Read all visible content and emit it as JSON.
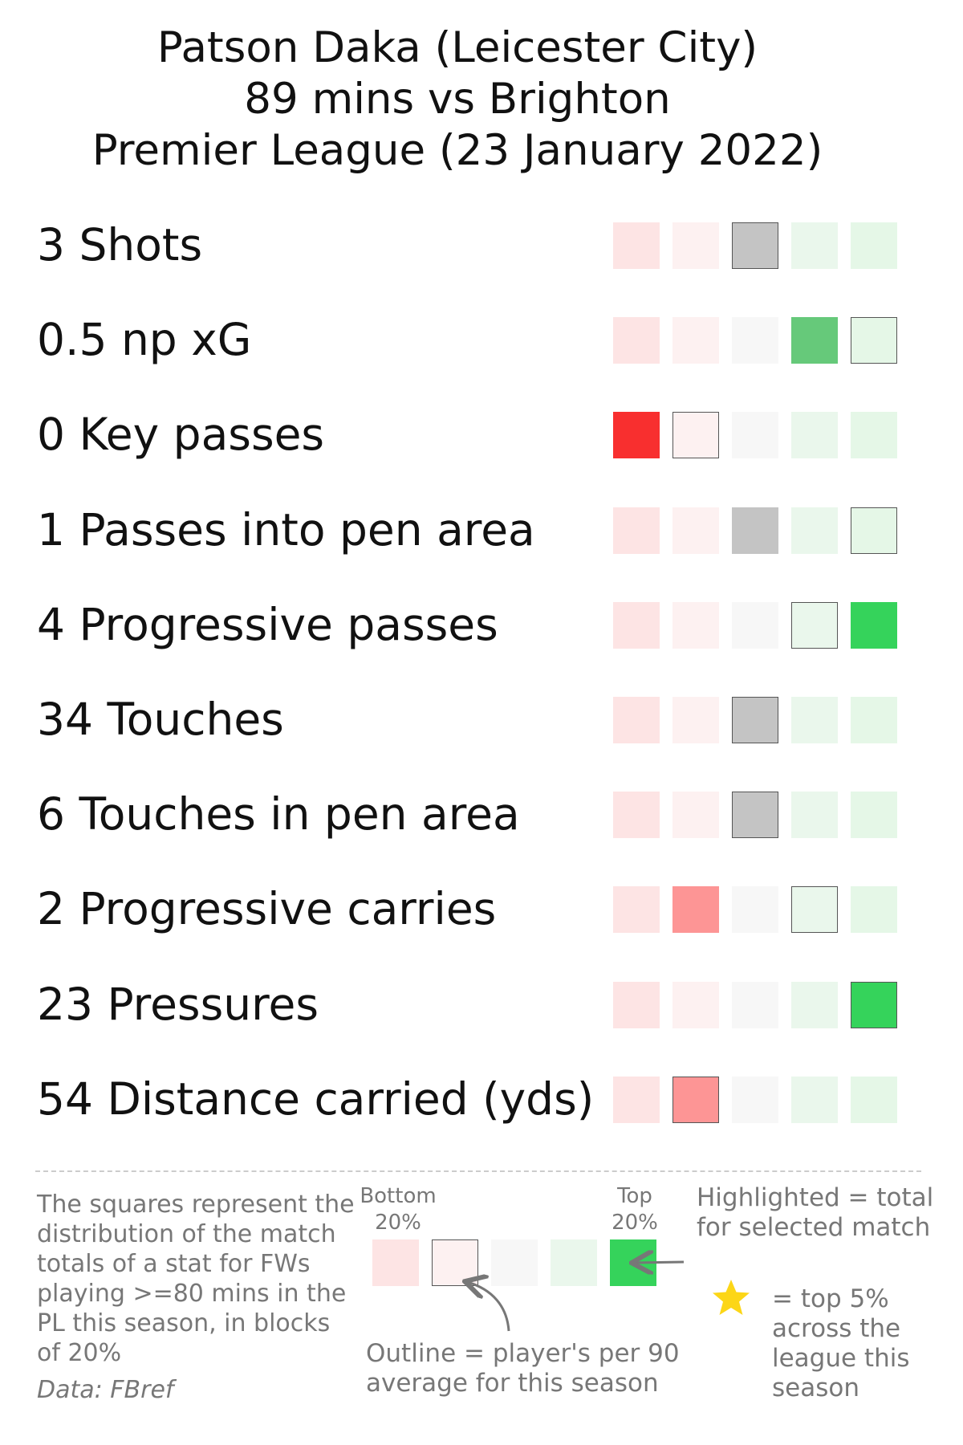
{
  "title": {
    "line1": "Patson Daka (Leicester City)",
    "line2": "89 mins vs Brighton",
    "line3": "Premier League (23 January 2022)"
  },
  "colors": {
    "base": [
      "#fde4e4",
      "#fdf1f1",
      "#f7f7f7",
      "#eaf7ec",
      "#e5f7e7"
    ],
    "neutral_highlight": "#c4c4c4",
    "outline": "#555555"
  },
  "chart_data": {
    "type": "table",
    "blocks": [
      "0-20%",
      "20-40%",
      "40-60%",
      "60-80%",
      "80-100%"
    ],
    "rows": [
      {
        "label": "3 Shots",
        "highlight_block": 3,
        "highlight_color": "#c4c4c4",
        "outline_block": 3
      },
      {
        "label": "0.5 np xG",
        "highlight_block": 4,
        "highlight_color": "#66c97a",
        "outline_block": 5
      },
      {
        "label": "0 Key passes",
        "highlight_block": 1,
        "highlight_color": "#f82f2f",
        "outline_block": 2
      },
      {
        "label": "1 Passes into pen area",
        "highlight_block": 3,
        "highlight_color": "#c4c4c4",
        "outline_block": 5
      },
      {
        "label": "4 Progressive passes",
        "highlight_block": 5,
        "highlight_color": "#35d35b",
        "outline_block": 4
      },
      {
        "label": "34 Touches",
        "highlight_block": 3,
        "highlight_color": "#c4c4c4",
        "outline_block": 3
      },
      {
        "label": "6 Touches in pen area",
        "highlight_block": 3,
        "highlight_color": "#c4c4c4",
        "outline_block": 3
      },
      {
        "label": "2 Progressive carries",
        "highlight_block": 2,
        "highlight_color": "#fd9595",
        "outline_block": 4
      },
      {
        "label": "23 Pressures",
        "highlight_block": 5,
        "highlight_color": "#35d35b",
        "outline_block": 5
      },
      {
        "label": "54 Distance carried (yds)",
        "highlight_block": 2,
        "highlight_color": "#fd9595",
        "outline_block": 2
      }
    ]
  },
  "legend": {
    "description": "The squares represent the distribution of the match totals of a stat for FWs playing >=80 mins in the PL this season, in blocks of 20%",
    "source": "Data: FBref",
    "bottom_label_1": "Bottom",
    "bottom_label_2": "20%",
    "top_label_1": "Top",
    "top_label_2": "20%",
    "highlight_note": "Highlighted = total for selected match",
    "outline_note": "Outline = player's per 90 average for this season",
    "star_note": "= top 5% across the league this season",
    "highlight_color": "#35d35b",
    "star_color": "#fcd617",
    "outline_block": 2,
    "highlight_block": 5
  }
}
